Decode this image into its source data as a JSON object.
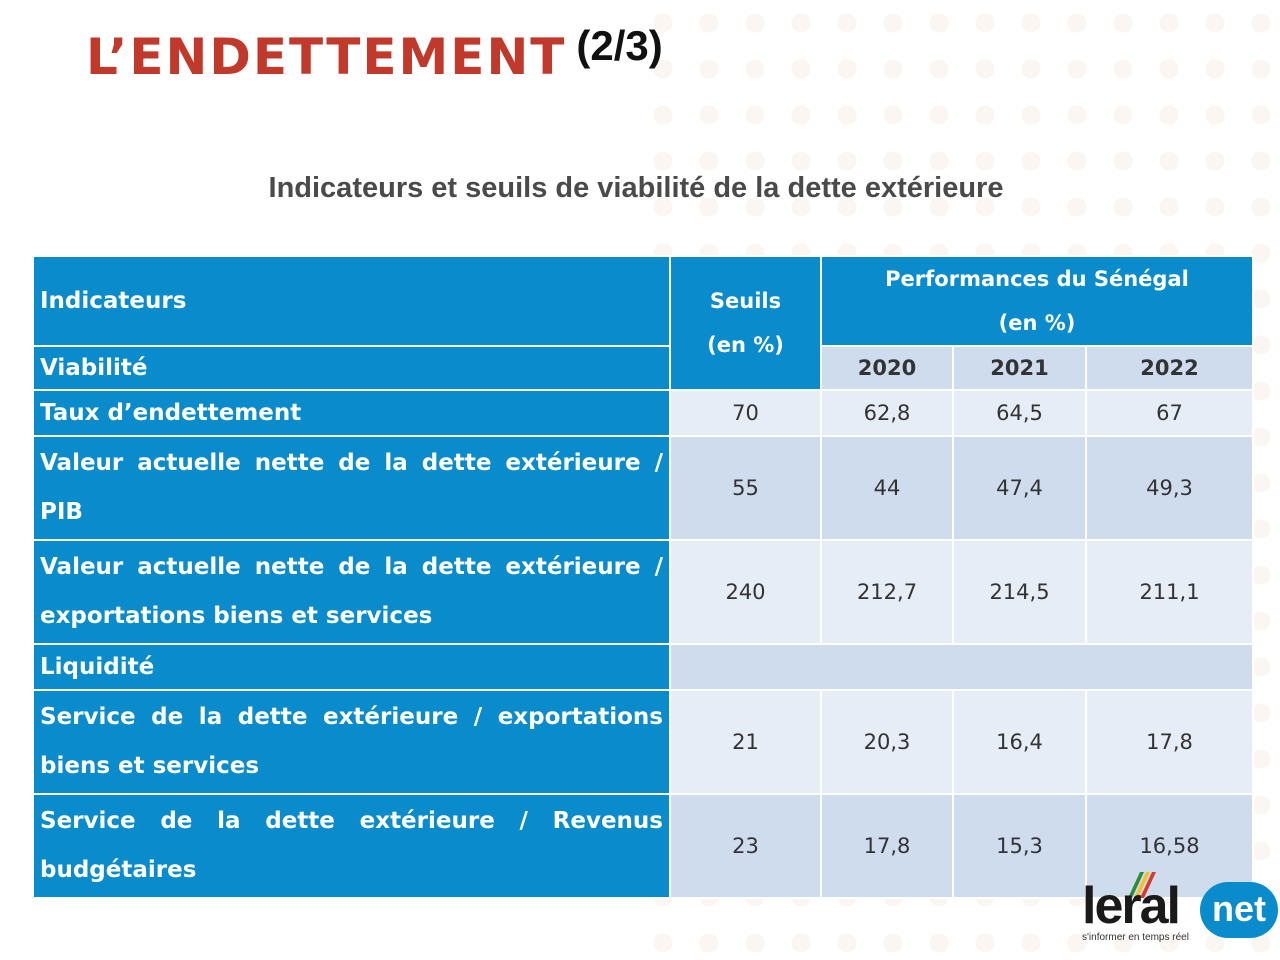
{
  "slide": {
    "title": "L’ENDETTEMENT",
    "page": "(2/3)",
    "subtitle": "Indicateurs et seuils de viabilité de la dette extérieure"
  },
  "table": {
    "col_indicateurs": "Indicateurs",
    "col_seuils_line1": "Seuils",
    "col_seuils_line2": "(en %)",
    "col_perf_line1": "Performances du Sénégal",
    "col_perf_line2": "(en %)",
    "years": [
      "2020",
      "2021",
      "2022"
    ],
    "section_viabilite": "Viabilité",
    "section_liquidite": "Liquidité",
    "rows": [
      {
        "label": "Taux d’endettement",
        "seuil": "70",
        "v2020": "62,8",
        "v2021": "64,5",
        "v2022": "67"
      },
      {
        "label": "Valeur actuelle nette de la dette extérieure / PIB",
        "seuil": "55",
        "v2020": "44",
        "v2021": "47,4",
        "v2022": "49,3"
      },
      {
        "label": "Valeur actuelle nette de la dette extérieure / exportations biens et services",
        "seuil": "240",
        "v2020": "212,7",
        "v2021": "214,5",
        "v2022": "211,1"
      },
      {
        "label": "Service de la dette extérieure / exportations biens et services",
        "seuil": "21",
        "v2020": "20,3",
        "v2021": "16,4",
        "v2022": "17,8"
      },
      {
        "label": "Service de la dette extérieure / Revenus budgétaires",
        "seuil": "23",
        "v2020": "17,8",
        "v2021": "15,3",
        "v2022": "16,58"
      }
    ]
  },
  "logo": {
    "brand": "leral",
    "suffix": "net",
    "tagline": "s'informer en temps réel",
    "colors": {
      "primary": "#0a8ccc",
      "flag_green": "#2e8b3a",
      "flag_yellow": "#f2c12e",
      "flag_red": "#d63a2c"
    }
  },
  "colors": {
    "title": "#c0392b",
    "header_blue": "#0a8ccc",
    "cell_light": "#e6edf7",
    "cell_mid": "#cfdcee"
  }
}
